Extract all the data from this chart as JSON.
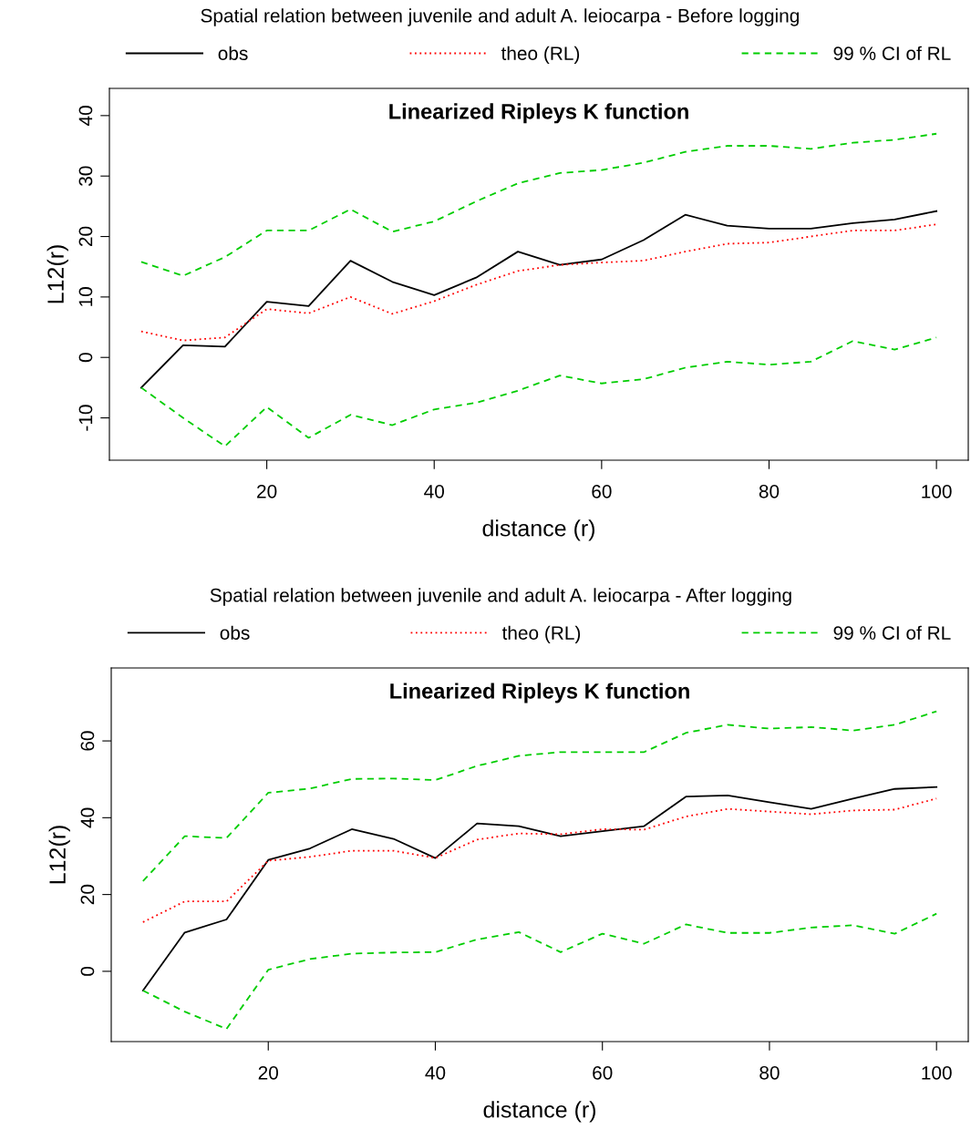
{
  "chart_data": [
    {
      "type": "line",
      "title": "Spatial relation between juvenile and adult A. leiocarpa - Before logging",
      "subtitle": "Linearized Ripleys K function",
      "xlabel": "distance (r)",
      "ylabel": "L12(r)",
      "x": [
        5,
        10,
        15,
        20,
        25,
        30,
        35,
        40,
        45,
        50,
        55,
        60,
        65,
        70,
        75,
        80,
        85,
        90,
        95,
        100
      ],
      "xlim": [
        1.2,
        103.8
      ],
      "xticks": [
        20,
        40,
        60,
        80,
        100
      ],
      "ylim": [
        -17,
        44.5
      ],
      "yticks": [
        -10,
        0,
        10,
        20,
        30,
        40
      ],
      "legend": "top",
      "grid": false,
      "series": [
        {
          "name": "obs",
          "color": "#000000",
          "line_style": "solid",
          "values": [
            -5,
            2,
            1.8,
            9.2,
            8.5,
            16,
            12.5,
            10.3,
            13.2,
            17.5,
            15.3,
            16.2,
            19.4,
            23.6,
            21.8,
            21.3,
            21.3,
            22.2,
            22.8,
            24.2
          ]
        },
        {
          "name": "theo (RL)",
          "color": "#ff0000",
          "line_style": "dotted",
          "values": [
            4.3,
            2.8,
            3.3,
            8.0,
            7.3,
            10.0,
            7.2,
            9.3,
            12.0,
            14.3,
            15.3,
            15.7,
            16.0,
            17.5,
            18.8,
            19.0,
            20.0,
            21.0,
            21.0,
            22.0
          ]
        },
        {
          "name": "99 % CI of RL",
          "color": "#00cd00",
          "line_style": "dashed",
          "values": [
            15.8,
            13.5,
            16.6,
            21.0,
            21.0,
            24.5,
            20.8,
            22.5,
            25.8,
            28.8,
            30.5,
            31.0,
            32.2,
            34.0,
            35.0,
            35.0,
            34.5,
            35.5,
            36.0,
            37.0
          ]
        },
        {
          "color": "#00cd00",
          "line_style": "dashed",
          "values": [
            -5,
            -10,
            -14.7,
            -8.2,
            -13.3,
            -9.5,
            -11.2,
            -8.6,
            -7.5,
            -5.5,
            -3,
            -4.3,
            -3.6,
            -1.7,
            -0.7,
            -1.2,
            -0.7,
            2.7,
            1.3,
            3.3
          ]
        }
      ]
    },
    {
      "type": "line",
      "title": "Spatial relation between juvenile and adult A. leiocarpa - After logging",
      "subtitle": "Linearized Ripleys K function",
      "xlabel": "distance (r)",
      "ylabel": "L12(r)",
      "x": [
        5,
        10,
        15,
        20,
        25,
        30,
        35,
        40,
        45,
        50,
        55,
        60,
        65,
        70,
        75,
        80,
        85,
        90,
        95,
        100
      ],
      "xlim": [
        1.2,
        103.8
      ],
      "xticks": [
        20,
        40,
        60,
        80,
        100
      ],
      "ylim": [
        -18.3,
        79
      ],
      "yticks": [
        0,
        20,
        40,
        60
      ],
      "legend": "top",
      "grid": false,
      "series": [
        {
          "name": "obs",
          "color": "#000000",
          "line_style": "solid",
          "values": [
            -5,
            10.1,
            13.5,
            29,
            32,
            37,
            34.5,
            29.5,
            38.5,
            37.8,
            35.2,
            36.5,
            37.8,
            45.5,
            45.8,
            44,
            42.3,
            45,
            47.5,
            48
          ]
        },
        {
          "name": "theo (RL)",
          "color": "#ff0000",
          "line_style": "dotted",
          "values": [
            12.8,
            18.2,
            18.2,
            28.8,
            29.8,
            31.4,
            31.4,
            29.5,
            34.3,
            35.9,
            35.7,
            37.0,
            36.9,
            40.3,
            42.3,
            41.6,
            40.9,
            41.9,
            42.1,
            45.0
          ]
        },
        {
          "name": "99 % CI of RL",
          "color": "#00cd00",
          "line_style": "dashed",
          "values": [
            23.5,
            35.2,
            34.7,
            46.5,
            47.6,
            50.1,
            50.2,
            49.8,
            53.5,
            56.1,
            57.1,
            57.1,
            57.1,
            62.1,
            64.2,
            63.2,
            63.6,
            62.7,
            64.2,
            67.7
          ]
        },
        {
          "color": "#00cd00",
          "line_style": "dashed",
          "values": [
            -5,
            -10.5,
            -15,
            0.4,
            3.2,
            4.6,
            4.9,
            5.0,
            8.3,
            10.2,
            5.0,
            9.8,
            7.2,
            12.2,
            10.0,
            10.0,
            11.4,
            12.0,
            9.8,
            15.0
          ]
        }
      ]
    }
  ]
}
